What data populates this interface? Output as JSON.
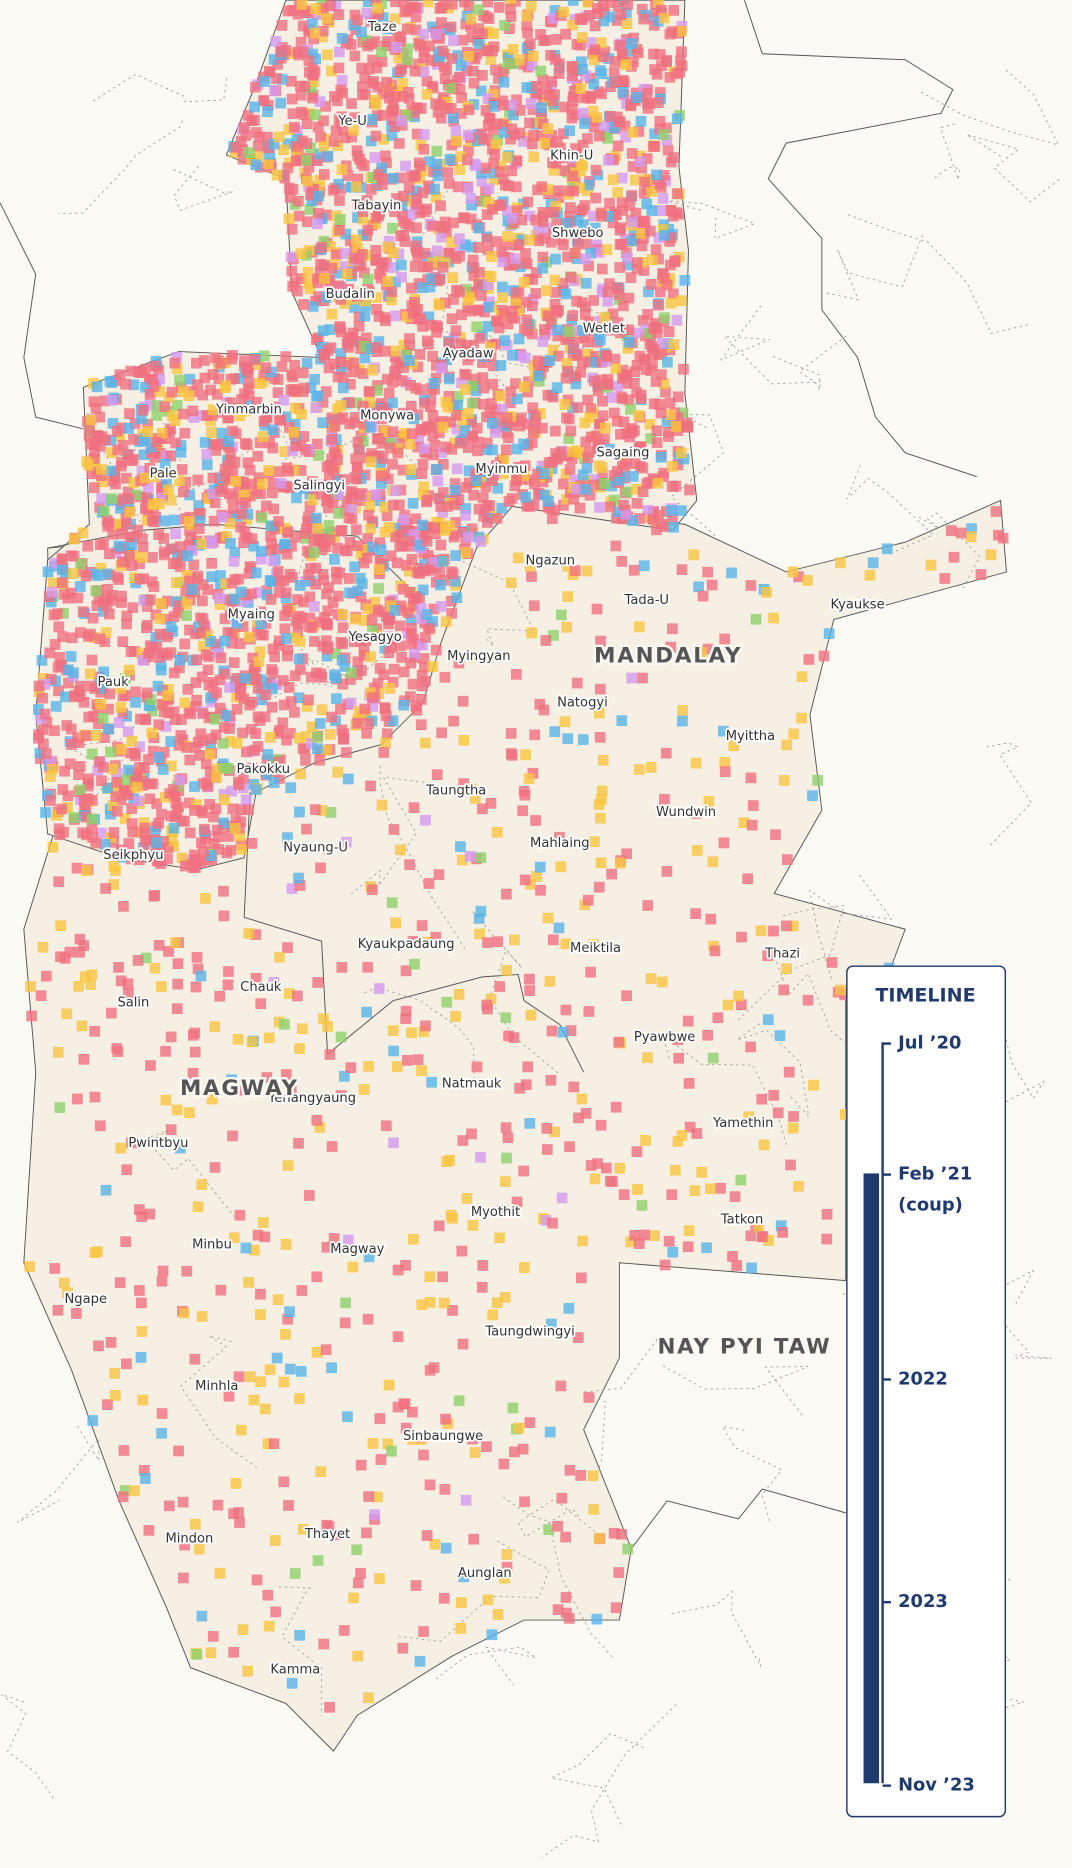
{
  "map": {
    "towns": [
      "Taze",
      "Ye-U",
      "Khin-U",
      "Tabayin",
      "Shwebo",
      "Budalin",
      "Wetlet",
      "Ayadaw",
      "Yinmarbin",
      "Monywa",
      "Sagaing",
      "Pale",
      "Salingyi",
      "Myinmu",
      "Ngazun",
      "Tada-U",
      "Kyaukse",
      "Myaing",
      "Yesagyo",
      "Myingyan",
      "Pauk",
      "Natogyi",
      "Myittha",
      "Pakokku",
      "Taungtha",
      "Wundwin",
      "Nyaung-U",
      "Seikphyu",
      "Mahlaing",
      "Kyaukpadaung",
      "Meiktila",
      "Thazi",
      "Chauk",
      "Salin",
      "Pyawbwe",
      "Natmauk",
      "Yenangyaung",
      "Yamethin",
      "Pwintbyu",
      "Myothit",
      "Tatkon",
      "Minbu",
      "Magway",
      "Ngape",
      "Taungdwingyi",
      "Minhla",
      "Sinbaungwe",
      "Thayet",
      "Mindon",
      "Aunglan",
      "Kamma"
    ],
    "regions": [
      "MANDALAY",
      "MAGWAY",
      "NAY PYI TAW"
    ]
  },
  "timeline": {
    "title": "TIMELINE",
    "ticks": [
      {
        "label": "Jul ’20"
      },
      {
        "label": "Feb ’21",
        "note": "(coup)"
      },
      {
        "label": "2022"
      },
      {
        "label": "2023"
      },
      {
        "label": "Nov ’23"
      }
    ]
  }
}
